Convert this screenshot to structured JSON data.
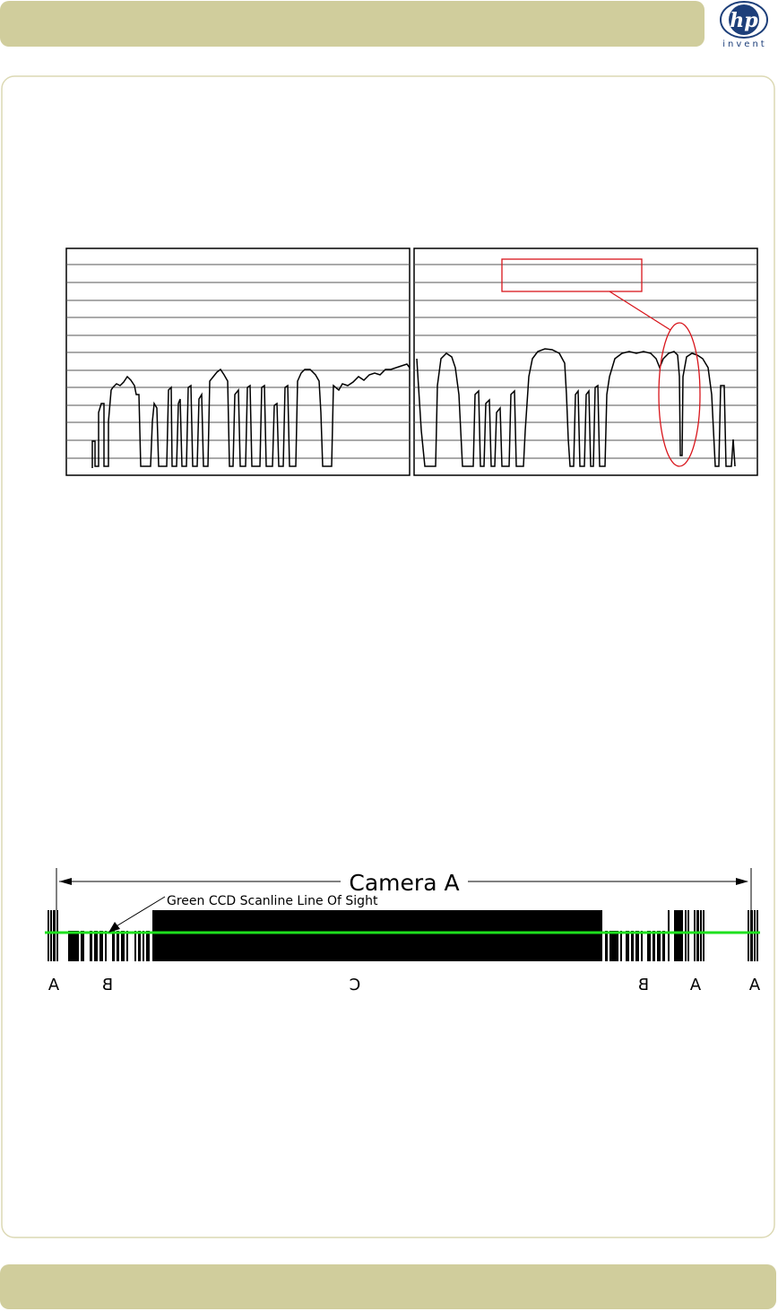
{
  "logo": {
    "brand": "hp",
    "tagline": "invent"
  },
  "diagram": {
    "title": "Camera A",
    "scanline_label": "Green CCD Scanline Line Of Sight",
    "section_labels": [
      "A",
      "B",
      "C",
      "B",
      "A",
      "A"
    ]
  }
}
